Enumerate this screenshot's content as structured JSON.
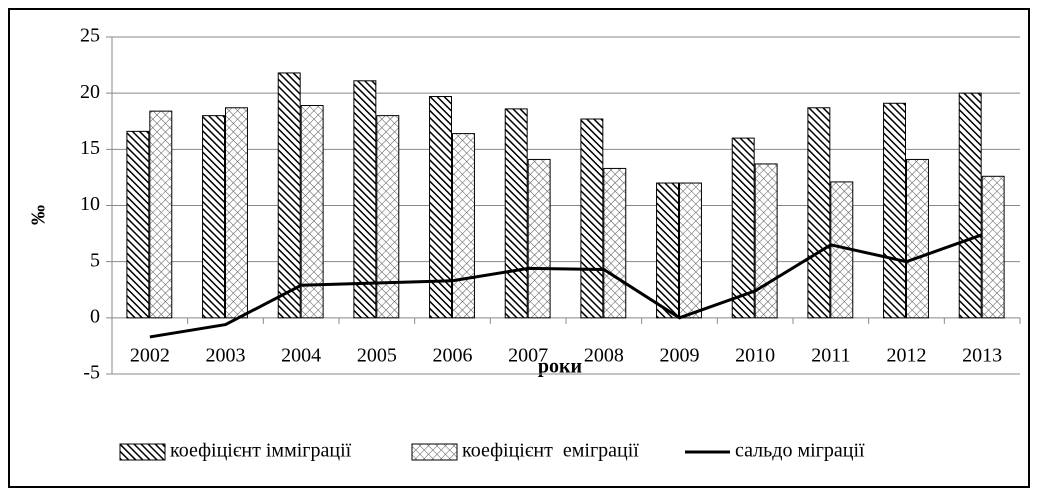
{
  "chart_data": {
    "type": "bar-line",
    "x_label": "роки",
    "y_label": "‰",
    "categories": [
      "2002",
      "2003",
      "2004",
      "2005",
      "2006",
      "2007",
      "2008",
      "2009",
      "2010",
      "2011",
      "2012",
      "2013"
    ],
    "series": [
      {
        "name": "коефіцієнт імміграції",
        "type": "bar",
        "color": "#000000",
        "values": [
          16.6,
          18.0,
          21.8,
          21.1,
          19.7,
          18.6,
          17.7,
          12.0,
          16.0,
          18.7,
          19.1,
          20.0
        ]
      },
      {
        "name": "коефіцієнт  еміграції",
        "type": "bar",
        "color": "#555555",
        "values": [
          18.4,
          18.7,
          18.9,
          18.0,
          16.4,
          14.1,
          13.3,
          12.0,
          13.7,
          12.1,
          14.1,
          12.6
        ]
      },
      {
        "name": "сальдо міграції",
        "type": "line",
        "color": "#000000",
        "values": [
          -1.7,
          -0.6,
          2.9,
          3.1,
          3.3,
          4.4,
          4.3,
          0.0,
          2.4,
          6.5,
          5.0,
          7.4
        ]
      }
    ],
    "ylim": [
      -5,
      25
    ],
    "yticks": [
      -5,
      0,
      5,
      10,
      15,
      20,
      25
    ],
    "grid": true,
    "legend": "bottom"
  }
}
